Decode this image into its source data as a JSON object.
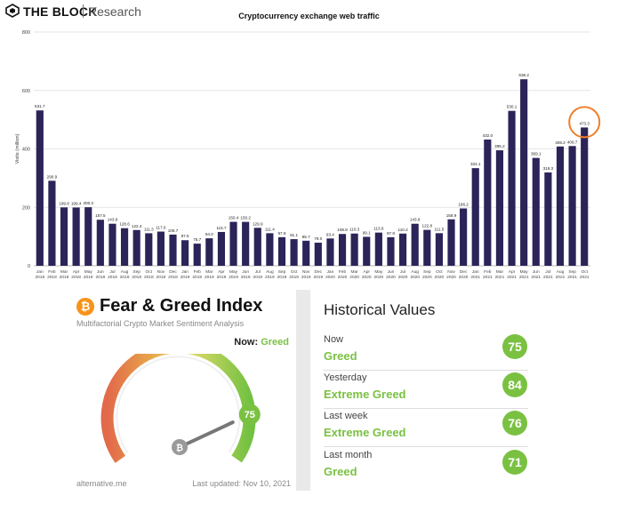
{
  "header": {
    "brand": "THE BLOCK",
    "sub": "Research"
  },
  "chart_data": {
    "type": "bar",
    "title": "Cryptocurrency exchange web traffic",
    "ylabel": "Visits (million)",
    "xlabel": "",
    "ylim": [
      0,
      800
    ],
    "yticks": [
      0,
      200,
      400,
      600,
      800
    ],
    "grid": true,
    "bar_color": "#2b2458",
    "highlight_color": "#f07f2a",
    "highlight_index": 45,
    "categories": [
      "Jan 2018",
      "Feb 2018",
      "Mar 2018",
      "Apr 2018",
      "May 2018",
      "Jun 2018",
      "Jul 2018",
      "Aug 2018",
      "Sep 2018",
      "Oct 2018",
      "Nov 2018",
      "Dec 2018",
      "Jan 2019",
      "Feb 2019",
      "Mar 2019",
      "Apr 2019",
      "May 2019",
      "Jun 2019",
      "Jul 2019",
      "Aug 2019",
      "Sep 2019",
      "Oct 2019",
      "Nov 2019",
      "Dec 2019",
      "Jan 2020",
      "Feb 2020",
      "Mar 2020",
      "Apr 2020",
      "May 2020",
      "Jun 2020",
      "Jul 2020",
      "Aug 2020",
      "Sep 2020",
      "Oct 2020",
      "Nov 2020",
      "Dec 2020",
      "Jan 2021",
      "Feb 2021",
      "Mar 2021",
      "Apr 2021",
      "May 2021",
      "Jun 2021",
      "Jul 2021",
      "Aug 2021",
      "Sep 2021",
      "Oct 2021"
    ],
    "values": [
      531.7,
      290.9,
      199.8,
      199.4,
      200.3,
      157.5,
      143.9,
      128.6,
      122.4,
      111.3,
      117.0,
      106.7,
      87.5,
      75.7,
      94.0,
      115.7,
      150.4,
      150.2,
      129.9,
      111.4,
      97.9,
      91.1,
      85.7,
      79.0,
      93.4,
      108.8,
      110.3,
      99.1,
      113.6,
      97.8,
      110.2,
      143.8,
      122.8,
      111.5,
      158.9,
      196.2,
      334.1,
      432.0,
      395.2,
      530.1,
      638.2,
      369.1,
      319.3,
      408.2,
      409.7,
      473.3
    ]
  },
  "fear_greed": {
    "badge": "₿",
    "title": "Fear & Greed Index",
    "subtitle": "Multifactorial Crypto Market Sentiment Analysis",
    "now_label": "Now:",
    "now_value": "Greed",
    "value": 75,
    "value_label": "75",
    "footer_left": "alternative.me",
    "footer_right": "Last updated: Nov 10, 2021",
    "accent": "#7ac142"
  },
  "historical": {
    "title": "Historical Values",
    "rows": [
      {
        "label": "Now",
        "classification": "Greed",
        "value": "75"
      },
      {
        "label": "Yesterday",
        "classification": "Extreme Greed",
        "value": "84"
      },
      {
        "label": "Last week",
        "classification": "Extreme Greed",
        "value": "76"
      },
      {
        "label": "Last month",
        "classification": "Greed",
        "value": "71"
      }
    ]
  }
}
